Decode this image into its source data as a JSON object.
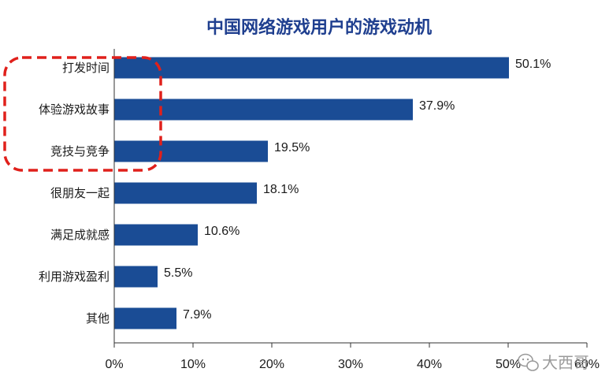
{
  "watermark": {
    "text": "大西哥",
    "icon": "wechat-icon"
  },
  "colors": {
    "bar": "#1a4c95",
    "axis": "#333333",
    "highlight": "#e0201b",
    "title": "#1f3f8f"
  },
  "chart_data": {
    "type": "bar",
    "orientation": "horizontal",
    "title": "中国网络游戏用户的游戏动机",
    "xlabel": "",
    "ylabel": "",
    "categories": [
      "打发时间",
      "体验游戏故事",
      "竞技与竞争",
      "很朋友一起",
      "满足成就感",
      "利用游戏盈利",
      "其他"
    ],
    "values": [
      50.1,
      37.9,
      19.5,
      18.1,
      10.6,
      5.5,
      7.9
    ],
    "value_labels": [
      "50.1%",
      "37.9%",
      "19.5%",
      "18.1%",
      "10.6%",
      "5.5%",
      "7.9%"
    ],
    "xlim": [
      0,
      60
    ],
    "xticks": [
      0,
      10,
      20,
      30,
      40,
      50,
      60
    ],
    "xtick_labels": [
      "0%",
      "10%",
      "20%",
      "30%",
      "40%",
      "50%",
      "60%"
    ],
    "grid": false,
    "legend": "none",
    "highlight": {
      "categories": [
        "打发时间",
        "体验游戏故事",
        "竞技与竞争"
      ],
      "style": "red-dashed-rounded-box"
    }
  }
}
